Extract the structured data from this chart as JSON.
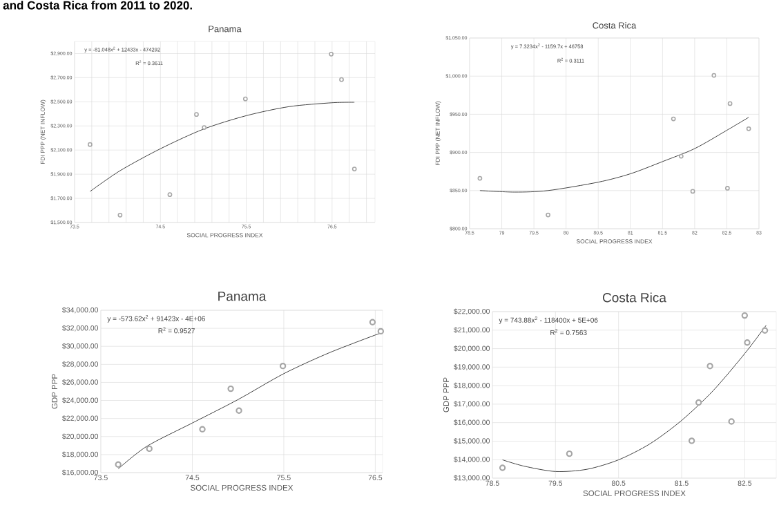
{
  "chart_data": [
    {
      "type": "scatter",
      "title": "Panama",
      "subtitle": "and Costa Rica from 2011 to 2020.",
      "xlabel": "SOCIAL PROGRESS INDEX",
      "ylabel": "FDI PPP (NET INFLOW)",
      "annotations": [
        "y = -81.048x$^{2}$ + 12433x  - 474292",
        "R$^{2}$ = 0.3611"
      ],
      "xlim": [
        73.5,
        77.0
      ],
      "ylim": [
        1500,
        3000
      ],
      "grid": true,
      "marker": "circle",
      "xticks": [
        73.5,
        {
          "value": 73.7,
          "label": null
        },
        {
          "value": 73.9,
          "label": null
        },
        {
          "value": 74.1,
          "label": null
        },
        {
          "value": 74.3,
          "label": null
        },
        74.5,
        {
          "value": 74.7,
          "label": null
        },
        {
          "value": 74.9,
          "label": null
        },
        {
          "value": 75.1,
          "label": null
        },
        {
          "value": 75.3,
          "label": null
        },
        75.5,
        {
          "value": 75.7,
          "label": null
        },
        {
          "value": 75.9,
          "label": null
        },
        {
          "value": 76.1,
          "label": null
        },
        {
          "value": 76.3,
          "label": null
        },
        76.5,
        {
          "value": 76.7,
          "label": null
        },
        {
          "value": 76.9,
          "label": null
        }
      ],
      "yticks": [
        {
          "value": 1500,
          "label": "$1,500.00"
        },
        {
          "value": 1700,
          "label": "$1,700.00"
        },
        {
          "value": 1900,
          "label": "$1,900.00"
        },
        {
          "value": 2100,
          "label": "$2,100.00"
        },
        {
          "value": 2300,
          "label": "$2,300.00"
        },
        {
          "value": 2500,
          "label": "$2,500.00"
        },
        {
          "value": 2700,
          "label": "$2,700.00"
        },
        {
          "value": 2900,
          "label": "$2,900.00"
        }
      ],
      "series": [
        {
          "color": "#a6a6a6",
          "x": [
            73.68,
            74.03,
            74.61,
            74.92,
            75.01,
            75.49,
            76.49,
            76.61,
            76.76
          ],
          "values": [
            2146,
            1561,
            1731,
            2395,
            2287,
            2524,
            2895,
            2684,
            1943
          ]
        },
        {
          "type": "line",
          "marker": "none",
          "color": "#404040",
          "x": [
            73.68,
            74.03,
            74.5,
            75.0,
            75.5,
            76.0,
            76.5,
            76.76
          ],
          "values": [
            1757,
            1929,
            2111,
            2273,
            2385,
            2460,
            2492,
            2496
          ]
        }
      ]
    },
    {
      "type": "scatter",
      "title": "Costa Rica",
      "xlabel": "SOCIAL PROGRESS INDEX",
      "ylabel": "FDI PPP (NET INFLOW)",
      "annotations": [
        "y = 7.3234x$^{2}$ - 1159.7x + 46758",
        "R$^{2}$ = 0.3111"
      ],
      "xlim": [
        78.5,
        83.0
      ],
      "ylim": [
        800,
        1050
      ],
      "grid": true,
      "marker": "circle",
      "xticks": [
        78.5,
        79,
        79.5,
        80,
        80.5,
        81,
        81.5,
        82,
        82.5,
        83
      ],
      "yticks": [
        {
          "value": 800,
          "label": "$800.00"
        },
        {
          "value": 850,
          "label": "$850.00"
        },
        {
          "value": 900,
          "label": "$900.00"
        },
        {
          "value": 950,
          "label": "$950.00"
        },
        {
          "value": 1000,
          "label": "$1,000.00"
        },
        {
          "value": 1050,
          "label": "$1,050.00"
        }
      ],
      "series": [
        {
          "color": "#a6a6a6",
          "x": [
            78.66,
            79.72,
            81.67,
            81.79,
            81.97,
            82.3,
            82.55,
            82.51,
            82.84
          ],
          "values": [
            866,
            818,
            944,
            895,
            849,
            1001,
            964,
            853,
            931
          ]
        },
        {
          "type": "line",
          "marker": "none",
          "color": "#404040",
          "x": [
            78.66,
            79.2,
            79.72,
            80.5,
            81.0,
            81.5,
            82.0,
            82.5,
            82.84
          ],
          "values": [
            850,
            848,
            850,
            861,
            872,
            888,
            905,
            929,
            946
          ]
        }
      ]
    },
    {
      "type": "scatter",
      "title": "Panama",
      "xlabel": "SOCIAL PROGRESS INDEX",
      "ylabel": "GDP PPP",
      "annotations": [
        "y = -573.62x$^{2}$ + 91423x - 4E+06",
        "R$^{2}$ = 0.9527"
      ],
      "xlim": [
        73.5,
        76.58
      ],
      "ylim": [
        16000,
        34000
      ],
      "grid": true,
      "marker": "circle",
      "xticks": [
        73.5,
        74.5,
        75.5,
        76.5
      ],
      "yticks": [
        {
          "value": 16000,
          "label": "$16,000.00"
        },
        {
          "value": 18000,
          "label": "$18,000.00"
        },
        {
          "value": 20000,
          "label": "$20,000.00"
        },
        {
          "value": 22000,
          "label": "$22,000.00"
        },
        {
          "value": 24000,
          "label": "$24,000.00"
        },
        {
          "value": 26000,
          "label": "$26,000.00"
        },
        {
          "value": 28000,
          "label": "$28,000.00"
        },
        {
          "value": 30000,
          "label": "$30,000.00"
        },
        {
          "value": 32000,
          "label": "$32,000.00"
        },
        {
          "value": 34000,
          "label": "$34,000.00"
        }
      ],
      "series": [
        {
          "color": "#a6a6a6",
          "x": [
            73.69,
            74.03,
            74.61,
            74.92,
            75.01,
            75.49,
            76.47,
            76.56
          ],
          "values": [
            16900,
            18650,
            20810,
            25300,
            22870,
            27820,
            32680,
            31670
          ]
        },
        {
          "type": "line",
          "marker": "none",
          "color": "#404040",
          "x": [
            73.69,
            74.0,
            74.5,
            75.0,
            75.5,
            76.0,
            76.56
          ],
          "values": [
            16410,
            18900,
            21500,
            24100,
            26970,
            29300,
            31480
          ]
        }
      ]
    },
    {
      "type": "scatter",
      "title": "Costa Rica",
      "xlabel": "SOCIAL PROGRESS INDEX",
      "ylabel": "GDP PPP",
      "annotations": [
        "y = 743.88x$^{2}$ - 118400x + 5E+06",
        "R$^{2}$ = 0.7563"
      ],
      "xlim": [
        78.5,
        83.0
      ],
      "ylim": [
        13000,
        22000
      ],
      "grid": true,
      "marker": "circle",
      "xticks": [
        78.5,
        79.5,
        80.5,
        81.5,
        82.5
      ],
      "yticks": [
        {
          "value": 13000,
          "label": "$13,000.00"
        },
        {
          "value": 14000,
          "label": "$14,000.00"
        },
        {
          "value": 15000,
          "label": "$15,000.00"
        },
        {
          "value": 16000,
          "label": "$16,000.00"
        },
        {
          "value": 17000,
          "label": "$17,000.00"
        },
        {
          "value": 18000,
          "label": "$18,000.00"
        },
        {
          "value": 19000,
          "label": "$19,000.00"
        },
        {
          "value": 20000,
          "label": "$20,000.00"
        },
        {
          "value": 21000,
          "label": "$21,000.00"
        },
        {
          "value": 22000,
          "label": "$22,000.00"
        }
      ],
      "series": [
        {
          "color": "#a6a6a6",
          "x": [
            78.66,
            79.72,
            81.66,
            81.77,
            81.95,
            82.29,
            82.5,
            82.54,
            82.82
          ],
          "values": [
            13560,
            14320,
            15020,
            17090,
            19060,
            16060,
            21790,
            20330,
            20980
          ]
        },
        {
          "type": "line",
          "marker": "none",
          "color": "#404040",
          "x": [
            78.66,
            79.0,
            79.5,
            80.0,
            80.5,
            81.0,
            81.5,
            82.0,
            82.5,
            82.84
          ],
          "values": [
            13990,
            13650,
            13360,
            13480,
            13990,
            14860,
            16120,
            17730,
            19730,
            21260
          ]
        }
      ]
    }
  ]
}
